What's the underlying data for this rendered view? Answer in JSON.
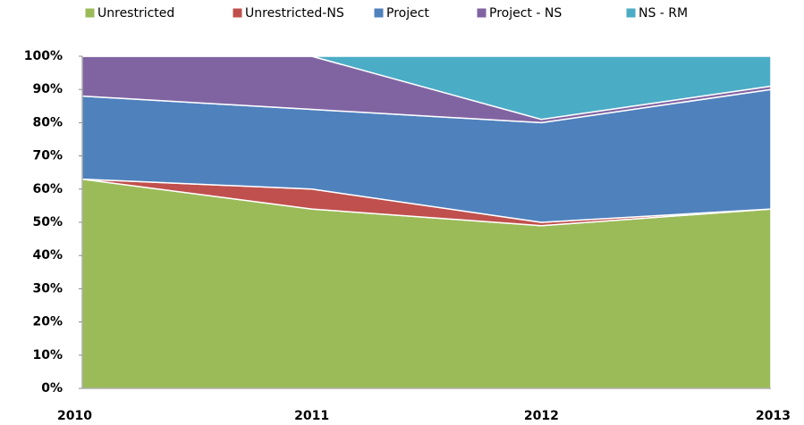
{
  "chart_data": {
    "type": "stacked_area_100",
    "categories": [
      "2010",
      "2011",
      "2012",
      "2013"
    ],
    "series": [
      {
        "name": "Unrestricted",
        "color": "#9bbb59",
        "values": [
          63,
          54,
          49,
          54
        ]
      },
      {
        "name": "Unrestricted-NS",
        "color": "#c0504d",
        "values": [
          0,
          6,
          1,
          0
        ]
      },
      {
        "name": "Project",
        "color": "#4f81bd",
        "values": [
          25,
          24,
          30,
          36
        ]
      },
      {
        "name": "Project - NS",
        "color": "#8064a2",
        "values": [
          12,
          16,
          1,
          1
        ]
      },
      {
        "name": "NS - RM",
        "color": "#4bacc6",
        "values": [
          0,
          0,
          19,
          9
        ]
      }
    ],
    "ylim": [
      0,
      100
    ],
    "yticks": [
      {
        "value": 0,
        "label": "0%"
      },
      {
        "value": 10,
        "label": "10%"
      },
      {
        "value": 20,
        "label": "20%"
      },
      {
        "value": 30,
        "label": "30%"
      },
      {
        "value": 40,
        "label": "40%"
      },
      {
        "value": 50,
        "label": "50%"
      },
      {
        "value": 60,
        "label": "60%"
      },
      {
        "value": 70,
        "label": "70%"
      },
      {
        "value": 80,
        "label": "80%"
      },
      {
        "value": 90,
        "label": "90%"
      },
      {
        "value": 100,
        "label": "100%"
      }
    ],
    "legend": "top"
  }
}
